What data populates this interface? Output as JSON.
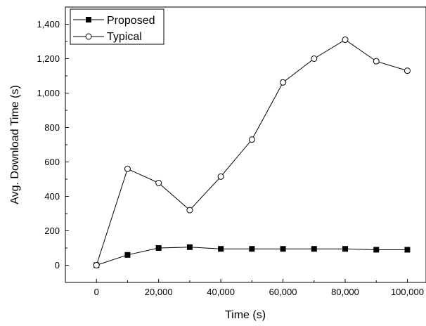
{
  "chart_data": {
    "type": "line",
    "xlabel": "Time (s)",
    "ylabel": "Avg. Download Time (s)",
    "xlim": [
      -10000,
      106000
    ],
    "ylim": [
      -100,
      1500
    ],
    "x_ticks": [
      0,
      20000,
      40000,
      60000,
      80000,
      100000
    ],
    "x_tick_labels": [
      "0",
      "20,000",
      "40,000",
      "60,000",
      "80,000",
      "100,000"
    ],
    "y_ticks": [
      0,
      200,
      400,
      600,
      800,
      1000,
      1200,
      1400
    ],
    "y_tick_labels": [
      "0",
      "200",
      "400",
      "600",
      "800",
      "1,000",
      "1,200",
      "1,400"
    ],
    "legend_position": "top-left",
    "grid": false,
    "x": [
      0,
      10000,
      20000,
      30000,
      40000,
      50000,
      60000,
      70000,
      80000,
      90000,
      100000
    ],
    "series": [
      {
        "name": "Proposed",
        "marker": "filled-square",
        "color": "#000000",
        "values": [
          0,
          60,
          100,
          105,
          95,
          95,
          95,
          95,
          95,
          90,
          90
        ]
      },
      {
        "name": "Typical",
        "marker": "open-circle",
        "color": "#000000",
        "values": [
          0,
          560,
          478,
          320,
          515,
          730,
          1062,
          1200,
          1310,
          1185,
          1130
        ]
      }
    ]
  }
}
